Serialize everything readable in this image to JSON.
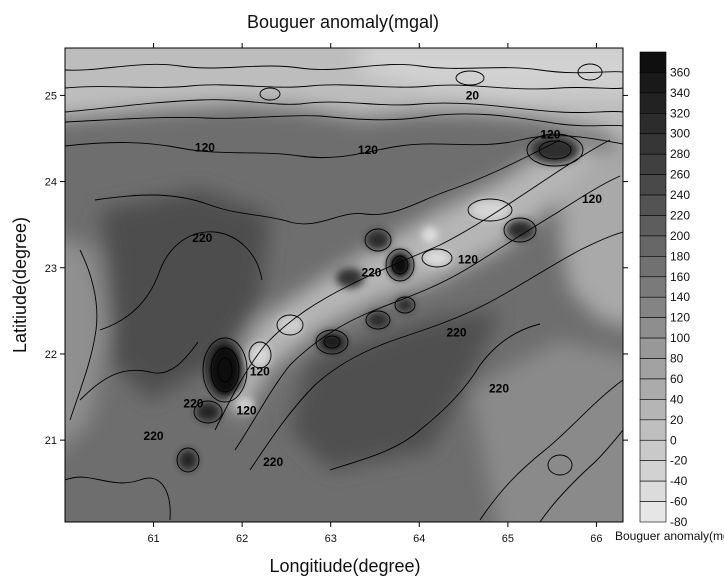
{
  "chart_data": {
    "type": "heatmap",
    "title": "Bouguer anomaly(mgal)",
    "xlabel": "Longitiude(degree)",
    "ylabel": "Latitiude(degree)",
    "xlim": [
      60.0,
      66.3
    ],
    "ylim": [
      20.05,
      25.55
    ],
    "x_ticks": [
      61,
      62,
      63,
      64,
      65,
      66
    ],
    "y_ticks": [
      21,
      22,
      23,
      24,
      25
    ],
    "colorbar": {
      "label": "Bouguer anomaly(mgal)",
      "levels": [
        360,
        340,
        320,
        300,
        280,
        260,
        240,
        220,
        200,
        180,
        160,
        140,
        120,
        100,
        80,
        60,
        40,
        20,
        0,
        -20,
        -40,
        -60,
        -80
      ],
      "min": -80,
      "max": 380,
      "step": 20
    },
    "contour_labels": [
      {
        "text": "20",
        "lon": 64.6,
        "lat": 24.95
      },
      {
        "text": "120",
        "lon": 61.58,
        "lat": 24.35
      },
      {
        "text": "120",
        "lon": 63.42,
        "lat": 24.32
      },
      {
        "text": "120",
        "lon": 65.48,
        "lat": 24.5
      },
      {
        "text": "120",
        "lon": 65.95,
        "lat": 23.75
      },
      {
        "text": "220",
        "lon": 61.55,
        "lat": 23.3
      },
      {
        "text": "120",
        "lon": 64.55,
        "lat": 23.05
      },
      {
        "text": "220",
        "lon": 63.46,
        "lat": 22.9
      },
      {
        "text": "220",
        "lon": 64.42,
        "lat": 22.2
      },
      {
        "text": "120",
        "lon": 62.2,
        "lat": 21.75
      },
      {
        "text": "220",
        "lon": 64.9,
        "lat": 21.55
      },
      {
        "text": "220",
        "lon": 61.45,
        "lat": 21.38
      },
      {
        "text": "120",
        "lon": 62.05,
        "lat": 21.3
      },
      {
        "text": "220",
        "lon": 61.0,
        "lat": 21.0
      },
      {
        "text": "220",
        "lon": 62.35,
        "lat": 20.7
      }
    ]
  },
  "colors": {
    "low": "#e6e6e6",
    "high": "#050505",
    "contour_line": "#000000"
  }
}
